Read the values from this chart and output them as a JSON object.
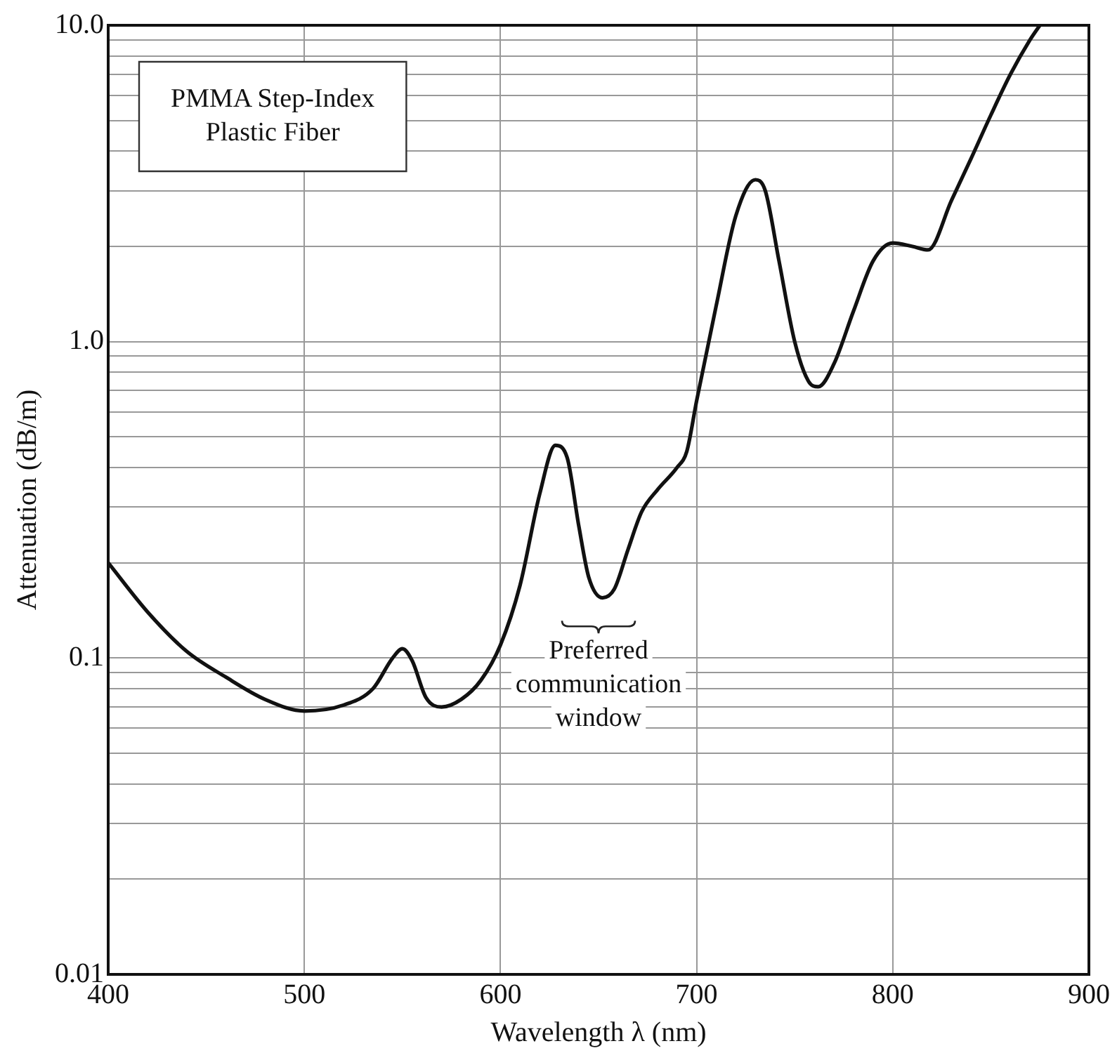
{
  "chart_data": {
    "type": "line",
    "xlabel": "Wavelength λ (nm)",
    "ylabel": "Attenuation (dB/m)",
    "log": "y",
    "grid": true,
    "legend": false,
    "marker": "none",
    "line_style": "solid",
    "xlim": [
      400,
      900
    ],
    "xticks": [
      400,
      500,
      600,
      700,
      800,
      900
    ],
    "ylim": [
      0.01,
      10
    ],
    "yticks": [
      {
        "value": 0.01,
        "label": "0.01"
      },
      {
        "value": 0.02,
        "label": null
      },
      {
        "value": 0.03,
        "label": null
      },
      {
        "value": 0.04,
        "label": null
      },
      {
        "value": 0.05,
        "label": null
      },
      {
        "value": 0.06,
        "label": null
      },
      {
        "value": 0.07,
        "label": null
      },
      {
        "value": 0.08,
        "label": null
      },
      {
        "value": 0.09,
        "label": null
      },
      {
        "value": 0.1,
        "label": "0.1"
      },
      {
        "value": 0.2,
        "label": null
      },
      {
        "value": 0.3,
        "label": null
      },
      {
        "value": 0.4,
        "label": null
      },
      {
        "value": 0.5,
        "label": null
      },
      {
        "value": 0.6,
        "label": null
      },
      {
        "value": 0.7,
        "label": null
      },
      {
        "value": 0.8,
        "label": null
      },
      {
        "value": 0.9,
        "label": null
      },
      {
        "value": 1,
        "label": "1.0"
      },
      {
        "value": 2,
        "label": null
      },
      {
        "value": 3,
        "label": null
      },
      {
        "value": 4,
        "label": null
      },
      {
        "value": 5,
        "label": null
      },
      {
        "value": 6,
        "label": null
      },
      {
        "value": 7,
        "label": null
      },
      {
        "value": 8,
        "label": null
      },
      {
        "value": 9,
        "label": null
      },
      {
        "value": 10,
        "label": "10.0"
      }
    ],
    "annotations": [
      "PMMA Step-Index Plastic Fiber",
      "Preferred communication window"
    ],
    "series": [
      {
        "color": "#111111",
        "x": [
          400,
          420,
          440,
          460,
          480,
          500,
          520,
          535,
          545,
          550,
          555,
          562,
          570,
          580,
          590,
          600,
          610,
          620,
          628,
          634,
          640,
          645,
          652,
          658,
          665,
          672,
          680,
          690,
          695,
          700,
          710,
          720,
          730,
          735,
          742,
          750,
          757,
          762,
          770,
          780,
          790,
          800,
          810,
          818,
          830,
          840,
          850,
          860,
          870,
          875
        ],
        "values": [
          0.2,
          0.14,
          0.105,
          0.087,
          0.074,
          0.068,
          0.071,
          0.08,
          0.1,
          0.107,
          0.098,
          0.075,
          0.07,
          0.074,
          0.085,
          0.11,
          0.17,
          0.33,
          0.47,
          0.43,
          0.26,
          0.18,
          0.155,
          0.165,
          0.22,
          0.29,
          0.34,
          0.4,
          0.45,
          0.65,
          1.3,
          2.5,
          3.25,
          3.0,
          1.8,
          1.0,
          0.75,
          0.72,
          0.85,
          1.25,
          1.8,
          2.05,
          2.0,
          1.95,
          2.8,
          3.8,
          5.2,
          7.0,
          9.0,
          10.0
        ]
      }
    ]
  }
}
